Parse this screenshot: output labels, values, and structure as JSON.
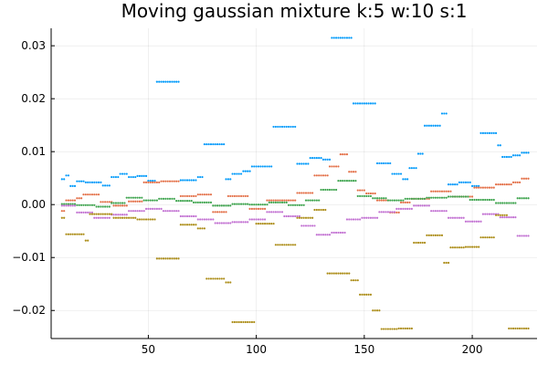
{
  "chart_data": {
    "type": "scatter",
    "title": "Moving gaussian mixture k:5 w:10 s:1",
    "xlabel": "",
    "ylabel": "",
    "xlim": [
      5,
      230
    ],
    "ylim": [
      -0.0253,
      0.0333
    ],
    "xticks": [
      50,
      100,
      150,
      200
    ],
    "xtick_labels": [
      "50",
      "100",
      "150",
      "200"
    ],
    "yticks": [
      -0.02,
      -0.01,
      0.0,
      0.01,
      0.02,
      0.03
    ],
    "ytick_labels": [
      "−0.02",
      "−0.01",
      "0.00",
      "0.01",
      "0.02",
      "0.03"
    ],
    "grid": true,
    "legend": "none",
    "series_colors": [
      "#009AFA",
      "#E36F47",
      "#3EA44E",
      "#C271D2",
      "#AC8D18"
    ],
    "series": [
      {
        "segments": [
          {
            "x0": 10,
            "x1": 11,
            "y": 0.0048
          },
          {
            "x0": 12,
            "x1": 13,
            "y": 0.0055
          },
          {
            "x0": 14,
            "x1": 16,
            "y": 0.0035
          },
          {
            "x0": 17,
            "x1": 20,
            "y": 0.0044
          },
          {
            "x0": 21,
            "x1": 28,
            "y": 0.0042
          },
          {
            "x0": 29,
            "x1": 32,
            "y": 0.0036
          },
          {
            "x0": 33,
            "x1": 36,
            "y": 0.0052
          },
          {
            "x0": 37,
            "x1": 40,
            "y": 0.0058
          },
          {
            "x0": 41,
            "x1": 44,
            "y": 0.0052
          },
          {
            "x0": 45,
            "x1": 49,
            "y": 0.0054
          },
          {
            "x0": 50,
            "x1": 53,
            "y": 0.0045
          },
          {
            "x0": 54,
            "x1": 64,
            "y": 0.0232
          },
          {
            "x0": 65,
            "x1": 72,
            "y": 0.0046
          },
          {
            "x0": 73,
            "x1": 75,
            "y": 0.0052
          },
          {
            "x0": 76,
            "x1": 85,
            "y": 0.0114
          },
          {
            "x0": 86,
            "x1": 88,
            "y": 0.0048
          },
          {
            "x0": 89,
            "x1": 93,
            "y": 0.0058
          },
          {
            "x0": 94,
            "x1": 97,
            "y": 0.0063
          },
          {
            "x0": 98,
            "x1": 107,
            "y": 0.0072
          },
          {
            "x0": 108,
            "x1": 118,
            "y": 0.0147
          },
          {
            "x0": 119,
            "x1": 124,
            "y": 0.0077
          },
          {
            "x0": 125,
            "x1": 130,
            "y": 0.0088
          },
          {
            "x0": 131,
            "x1": 134,
            "y": 0.0085
          },
          {
            "x0": 135,
            "x1": 144,
            "y": 0.0315
          },
          {
            "x0": 145,
            "x1": 155,
            "y": 0.0191
          },
          {
            "x0": 156,
            "x1": 162,
            "y": 0.0078
          },
          {
            "x0": 163,
            "x1": 167,
            "y": 0.0058
          },
          {
            "x0": 168,
            "x1": 170,
            "y": 0.0048
          },
          {
            "x0": 171,
            "x1": 174,
            "y": 0.0069
          },
          {
            "x0": 175,
            "x1": 177,
            "y": 0.0096
          },
          {
            "x0": 178,
            "x1": 185,
            "y": 0.0149
          },
          {
            "x0": 186,
            "x1": 188,
            "y": 0.0172
          },
          {
            "x0": 189,
            "x1": 193,
            "y": 0.0038
          },
          {
            "x0": 194,
            "x1": 199,
            "y": 0.0042
          },
          {
            "x0": 200,
            "x1": 203,
            "y": 0.0035
          },
          {
            "x0": 204,
            "x1": 211,
            "y": 0.0135
          },
          {
            "x0": 212,
            "x1": 213,
            "y": 0.0112
          },
          {
            "x0": 214,
            "x1": 218,
            "y": 0.009
          },
          {
            "x0": 219,
            "x1": 222,
            "y": 0.0093
          },
          {
            "x0": 223,
            "x1": 226,
            "y": 0.0098
          }
        ]
      },
      {
        "segments": [
          {
            "x0": 10,
            "x1": 11,
            "y": -0.0012
          },
          {
            "x0": 12,
            "x1": 16,
            "y": 0.0008
          },
          {
            "x0": 17,
            "x1": 19,
            "y": 0.0012
          },
          {
            "x0": 20,
            "x1": 27,
            "y": 0.0019
          },
          {
            "x0": 28,
            "x1": 33,
            "y": 0.0005
          },
          {
            "x0": 34,
            "x1": 40,
            "y": -0.0002
          },
          {
            "x0": 41,
            "x1": 47,
            "y": 0.0006
          },
          {
            "x0": 48,
            "x1": 55,
            "y": 0.0042
          },
          {
            "x0": 56,
            "x1": 64,
            "y": 0.0044
          },
          {
            "x0": 65,
            "x1": 72,
            "y": 0.0016
          },
          {
            "x0": 73,
            "x1": 79,
            "y": 0.0019
          },
          {
            "x0": 80,
            "x1": 86,
            "y": -0.0014
          },
          {
            "x0": 87,
            "x1": 96,
            "y": 0.0016
          },
          {
            "x0": 97,
            "x1": 104,
            "y": -0.0008
          },
          {
            "x0": 105,
            "x1": 118,
            "y": 0.0008
          },
          {
            "x0": 119,
            "x1": 126,
            "y": 0.0022
          },
          {
            "x0": 127,
            "x1": 133,
            "y": 0.0055
          },
          {
            "x0": 134,
            "x1": 138,
            "y": 0.0072
          },
          {
            "x0": 139,
            "x1": 142,
            "y": 0.0095
          },
          {
            "x0": 143,
            "x1": 146,
            "y": 0.0062
          },
          {
            "x0": 147,
            "x1": 150,
            "y": 0.0027
          },
          {
            "x0": 151,
            "x1": 155,
            "y": 0.0021
          },
          {
            "x0": 156,
            "x1": 161,
            "y": 0.0008
          },
          {
            "x0": 162,
            "x1": 166,
            "y": -0.0015
          },
          {
            "x0": 167,
            "x1": 171,
            "y": 0.0004
          },
          {
            "x0": 172,
            "x1": 180,
            "y": 0.0011
          },
          {
            "x0": 181,
            "x1": 190,
            "y": 0.0025
          },
          {
            "x0": 191,
            "x1": 200,
            "y": 0.0015
          },
          {
            "x0": 201,
            "x1": 210,
            "y": 0.0032
          },
          {
            "x0": 211,
            "x1": 218,
            "y": 0.0038
          },
          {
            "x0": 219,
            "x1": 222,
            "y": 0.0042
          },
          {
            "x0": 223,
            "x1": 226,
            "y": 0.0049
          }
        ]
      },
      {
        "segments": [
          {
            "x0": 10,
            "x1": 16,
            "y": 0.0001
          },
          {
            "x0": 17,
            "x1": 25,
            "y": -0.0001
          },
          {
            "x0": 26,
            "x1": 32,
            "y": -0.0004
          },
          {
            "x0": 33,
            "x1": 39,
            "y": 0.0003
          },
          {
            "x0": 40,
            "x1": 47,
            "y": 0.0013
          },
          {
            "x0": 48,
            "x1": 54,
            "y": 0.0008
          },
          {
            "x0": 55,
            "x1": 62,
            "y": 0.0011
          },
          {
            "x0": 63,
            "x1": 70,
            "y": 0.0007
          },
          {
            "x0": 71,
            "x1": 79,
            "y": 0.0004
          },
          {
            "x0": 80,
            "x1": 88,
            "y": -0.0002
          },
          {
            "x0": 89,
            "x1": 96,
            "y": 0.0001
          },
          {
            "x0": 97,
            "x1": 105,
            "y": 0.0
          },
          {
            "x0": 106,
            "x1": 114,
            "y": 0.0004
          },
          {
            "x0": 115,
            "x1": 122,
            "y": -0.0001
          },
          {
            "x0": 123,
            "x1": 129,
            "y": 0.0008
          },
          {
            "x0": 130,
            "x1": 137,
            "y": 0.0028
          },
          {
            "x0": 138,
            "x1": 146,
            "y": 0.0045
          },
          {
            "x0": 147,
            "x1": 153,
            "y": 0.0016
          },
          {
            "x0": 154,
            "x1": 160,
            "y": 0.0012
          },
          {
            "x0": 161,
            "x1": 168,
            "y": 0.0008
          },
          {
            "x0": 169,
            "x1": 178,
            "y": 0.0011
          },
          {
            "x0": 179,
            "x1": 188,
            "y": 0.0013
          },
          {
            "x0": 189,
            "x1": 198,
            "y": 0.0015
          },
          {
            "x0": 199,
            "x1": 210,
            "y": 0.0009
          },
          {
            "x0": 211,
            "x1": 220,
            "y": 0.0003
          },
          {
            "x0": 221,
            "x1": 226,
            "y": 0.0012
          }
        ]
      },
      {
        "segments": [
          {
            "x0": 10,
            "x1": 16,
            "y": -0.0002
          },
          {
            "x0": 17,
            "x1": 24,
            "y": -0.0015
          },
          {
            "x0": 25,
            "x1": 32,
            "y": -0.0025
          },
          {
            "x0": 33,
            "x1": 40,
            "y": -0.0019
          },
          {
            "x0": 41,
            "x1": 48,
            "y": -0.0012
          },
          {
            "x0": 49,
            "x1": 56,
            "y": -0.0008
          },
          {
            "x0": 57,
            "x1": 64,
            "y": -0.0012
          },
          {
            "x0": 65,
            "x1": 72,
            "y": -0.0022
          },
          {
            "x0": 73,
            "x1": 80,
            "y": -0.0028
          },
          {
            "x0": 81,
            "x1": 88,
            "y": -0.0035
          },
          {
            "x0": 89,
            "x1": 96,
            "y": -0.0033
          },
          {
            "x0": 97,
            "x1": 104,
            "y": -0.0028
          },
          {
            "x0": 105,
            "x1": 112,
            "y": -0.0014
          },
          {
            "x0": 113,
            "x1": 120,
            "y": -0.0022
          },
          {
            "x0": 121,
            "x1": 127,
            "y": -0.004
          },
          {
            "x0": 128,
            "x1": 134,
            "y": -0.0057
          },
          {
            "x0": 135,
            "x1": 141,
            "y": -0.0053
          },
          {
            "x0": 142,
            "x1": 148,
            "y": -0.0028
          },
          {
            "x0": 149,
            "x1": 156,
            "y": -0.0025
          },
          {
            "x0": 157,
            "x1": 164,
            "y": -0.0014
          },
          {
            "x0": 165,
            "x1": 172,
            "y": -0.0008
          },
          {
            "x0": 173,
            "x1": 180,
            "y": -0.0002
          },
          {
            "x0": 181,
            "x1": 188,
            "y": -0.0012
          },
          {
            "x0": 189,
            "x1": 196,
            "y": -0.0025
          },
          {
            "x0": 197,
            "x1": 204,
            "y": -0.0032
          },
          {
            "x0": 205,
            "x1": 212,
            "y": -0.0018
          },
          {
            "x0": 213,
            "x1": 220,
            "y": -0.0024
          },
          {
            "x0": 221,
            "x1": 226,
            "y": -0.0059
          }
        ]
      },
      {
        "segments": [
          {
            "x0": 10,
            "x1": 11,
            "y": -0.0025
          },
          {
            "x0": 12,
            "x1": 20,
            "y": -0.0056
          },
          {
            "x0": 21,
            "x1": 22,
            "y": -0.0068
          },
          {
            "x0": 23,
            "x1": 33,
            "y": -0.0018
          },
          {
            "x0": 34,
            "x1": 44,
            "y": -0.0025
          },
          {
            "x0": 45,
            "x1": 53,
            "y": -0.0028
          },
          {
            "x0": 54,
            "x1": 64,
            "y": -0.0102
          },
          {
            "x0": 65,
            "x1": 72,
            "y": -0.0038
          },
          {
            "x0": 73,
            "x1": 76,
            "y": -0.0045
          },
          {
            "x0": 77,
            "x1": 85,
            "y": -0.014
          },
          {
            "x0": 86,
            "x1": 88,
            "y": -0.0147
          },
          {
            "x0": 89,
            "x1": 99,
            "y": -0.0222
          },
          {
            "x0": 100,
            "x1": 108,
            "y": -0.0036
          },
          {
            "x0": 109,
            "x1": 118,
            "y": -0.0076
          },
          {
            "x0": 119,
            "x1": 126,
            "y": -0.0025
          },
          {
            "x0": 127,
            "x1": 132,
            "y": -0.001
          },
          {
            "x0": 133,
            "x1": 143,
            "y": -0.013
          },
          {
            "x0": 144,
            "x1": 147,
            "y": -0.0143
          },
          {
            "x0": 148,
            "x1": 153,
            "y": -0.017
          },
          {
            "x0": 154,
            "x1": 157,
            "y": -0.02
          },
          {
            "x0": 158,
            "x1": 165,
            "y": -0.0235
          },
          {
            "x0": 166,
            "x1": 172,
            "y": -0.0234
          },
          {
            "x0": 173,
            "x1": 178,
            "y": -0.0072
          },
          {
            "x0": 179,
            "x1": 186,
            "y": -0.0058
          },
          {
            "x0": 187,
            "x1": 189,
            "y": -0.011
          },
          {
            "x0": 190,
            "x1": 196,
            "y": -0.0081
          },
          {
            "x0": 197,
            "x1": 203,
            "y": -0.008
          },
          {
            "x0": 204,
            "x1": 210,
            "y": -0.0062
          },
          {
            "x0": 211,
            "x1": 216,
            "y": -0.002
          },
          {
            "x0": 217,
            "x1": 226,
            "y": -0.0234
          }
        ]
      }
    ]
  }
}
